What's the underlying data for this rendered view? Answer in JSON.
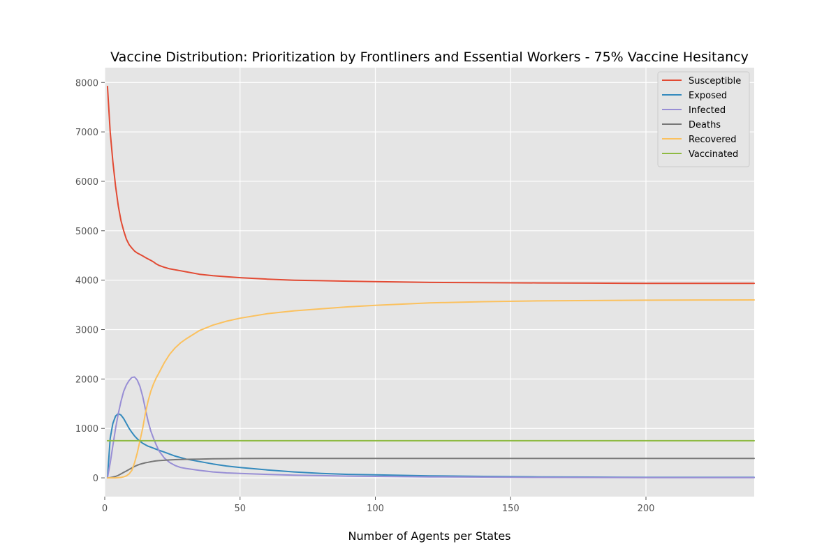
{
  "chart_data": {
    "type": "line",
    "title": "Vaccine Distribution: Prioritization by Frontliners and Essential Workers - 75% Vaccine Hesitancy",
    "xlabel": "Number of Agents per States",
    "ylabel": "",
    "xlim": [
      0,
      240
    ],
    "ylim": [
      -380,
      8300
    ],
    "xticks": [
      0,
      50,
      100,
      150,
      200
    ],
    "yticks": [
      0,
      1000,
      2000,
      3000,
      4000,
      5000,
      6000,
      7000,
      8000
    ],
    "grid": true,
    "legend_position": "upper right",
    "x": [
      1,
      2,
      3,
      4,
      5,
      6,
      7,
      8,
      9,
      10,
      11,
      12,
      13,
      14,
      15,
      16,
      17,
      18,
      19,
      20,
      22,
      24,
      26,
      28,
      30,
      35,
      40,
      45,
      50,
      60,
      70,
      80,
      90,
      100,
      120,
      140,
      160,
      180,
      200,
      220,
      240
    ],
    "series": [
      {
        "name": "Susceptible",
        "color": "#E24A33",
        "values": [
          7920,
          7000,
          6400,
          5900,
          5500,
          5200,
          5000,
          4830,
          4720,
          4650,
          4590,
          4550,
          4520,
          4490,
          4460,
          4430,
          4400,
          4370,
          4330,
          4300,
          4260,
          4230,
          4210,
          4190,
          4170,
          4120,
          4090,
          4070,
          4050,
          4020,
          4000,
          3990,
          3980,
          3970,
          3955,
          3950,
          3945,
          3940,
          3935,
          3935,
          3935
        ]
      },
      {
        "name": "Exposed",
        "color": "#348ABD",
        "values": [
          0,
          800,
          1100,
          1250,
          1300,
          1270,
          1200,
          1100,
          1000,
          920,
          850,
          790,
          740,
          700,
          670,
          640,
          620,
          600,
          580,
          560,
          520,
          480,
          440,
          410,
          380,
          330,
          280,
          240,
          210,
          160,
          120,
          90,
          70,
          60,
          40,
          30,
          20,
          15,
          10,
          10,
          10
        ]
      },
      {
        "name": "Infected",
        "color": "#988ED5",
        "values": [
          0,
          300,
          650,
          1000,
          1300,
          1550,
          1750,
          1880,
          1970,
          2030,
          2040,
          1980,
          1850,
          1650,
          1400,
          1150,
          950,
          800,
          670,
          550,
          400,
          310,
          250,
          210,
          190,
          150,
          120,
          100,
          90,
          70,
          55,
          45,
          35,
          30,
          20,
          15,
          10,
          8,
          6,
          5,
          5
        ]
      },
      {
        "name": "Deaths",
        "color": "#777777",
        "values": [
          0,
          5,
          15,
          30,
          50,
          80,
          110,
          140,
          170,
          200,
          230,
          255,
          275,
          290,
          305,
          315,
          325,
          335,
          342,
          348,
          355,
          362,
          368,
          372,
          375,
          380,
          385,
          388,
          390,
          392,
          393,
          393,
          393,
          393,
          393,
          393,
          393,
          393,
          393,
          393,
          393
        ]
      },
      {
        "name": "Recovered",
        "color": "#FBC15E",
        "values": [
          0,
          0,
          0,
          0,
          5,
          10,
          20,
          40,
          80,
          150,
          300,
          500,
          750,
          1000,
          1300,
          1550,
          1750,
          1900,
          2020,
          2120,
          2330,
          2500,
          2630,
          2730,
          2810,
          2980,
          3090,
          3170,
          3230,
          3320,
          3380,
          3420,
          3460,
          3490,
          3540,
          3565,
          3580,
          3588,
          3594,
          3598,
          3600
        ]
      },
      {
        "name": "Vaccinated",
        "color": "#8EBA42",
        "values": [
          750,
          750,
          750,
          750,
          750,
          750,
          750,
          750,
          750,
          750,
          750,
          750,
          750,
          750,
          750,
          750,
          750,
          750,
          750,
          750,
          750,
          750,
          750,
          750,
          750,
          750,
          750,
          750,
          750,
          750,
          750,
          750,
          750,
          750,
          750,
          750,
          750,
          750,
          750,
          750,
          750
        ]
      }
    ]
  }
}
